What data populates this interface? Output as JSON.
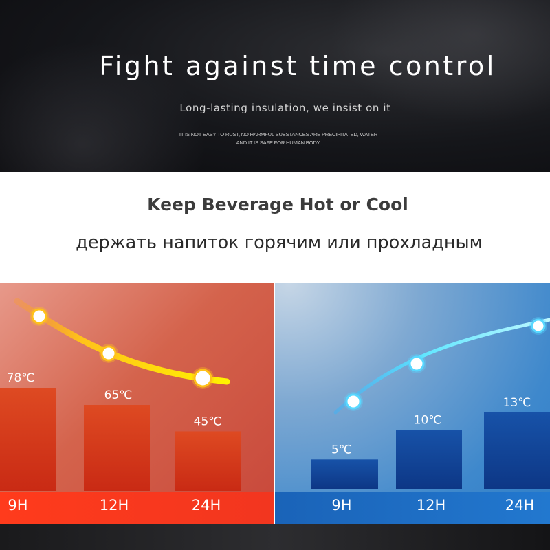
{
  "banner": {
    "title": "Fight against time control",
    "subtitle": "Long-lasting insulation, we insist on it",
    "fine_print_line1": "IT IS NOT EASY TO RUST, NO HARMFUL SUBSTANCES ARE PRECIPITATED, WATER",
    "fine_print_line2": "AND IT IS SAFE FOR HUMAN BODY."
  },
  "headings": {
    "english": "Keep Beverage Hot or Cool",
    "russian": "держать напиток горячим или прохладным"
  },
  "chart_data": [
    {
      "type": "bar",
      "categories": [
        "9H",
        "12H",
        "24H"
      ],
      "values": [
        78,
        65,
        45
      ],
      "value_labels": [
        "78℃",
        "65℃",
        "45℃"
      ],
      "unit": "℃",
      "trend": "decreasing",
      "colors": {
        "bar": "#d8381c",
        "background": "#d46a55",
        "axis": "#f53a1d",
        "trend_line": "#ffd21a"
      }
    },
    {
      "type": "bar",
      "categories": [
        "9H",
        "12H",
        "24H"
      ],
      "values": [
        5,
        10,
        13
      ],
      "value_labels": [
        "5℃",
        "10℃",
        "13℃"
      ],
      "unit": "℃",
      "trend": "increasing",
      "colors": {
        "bar": "#0f3f93",
        "background": "#3e88cc",
        "axis": "#1d6fc7",
        "trend_line": "#5fe6ff"
      }
    }
  ]
}
